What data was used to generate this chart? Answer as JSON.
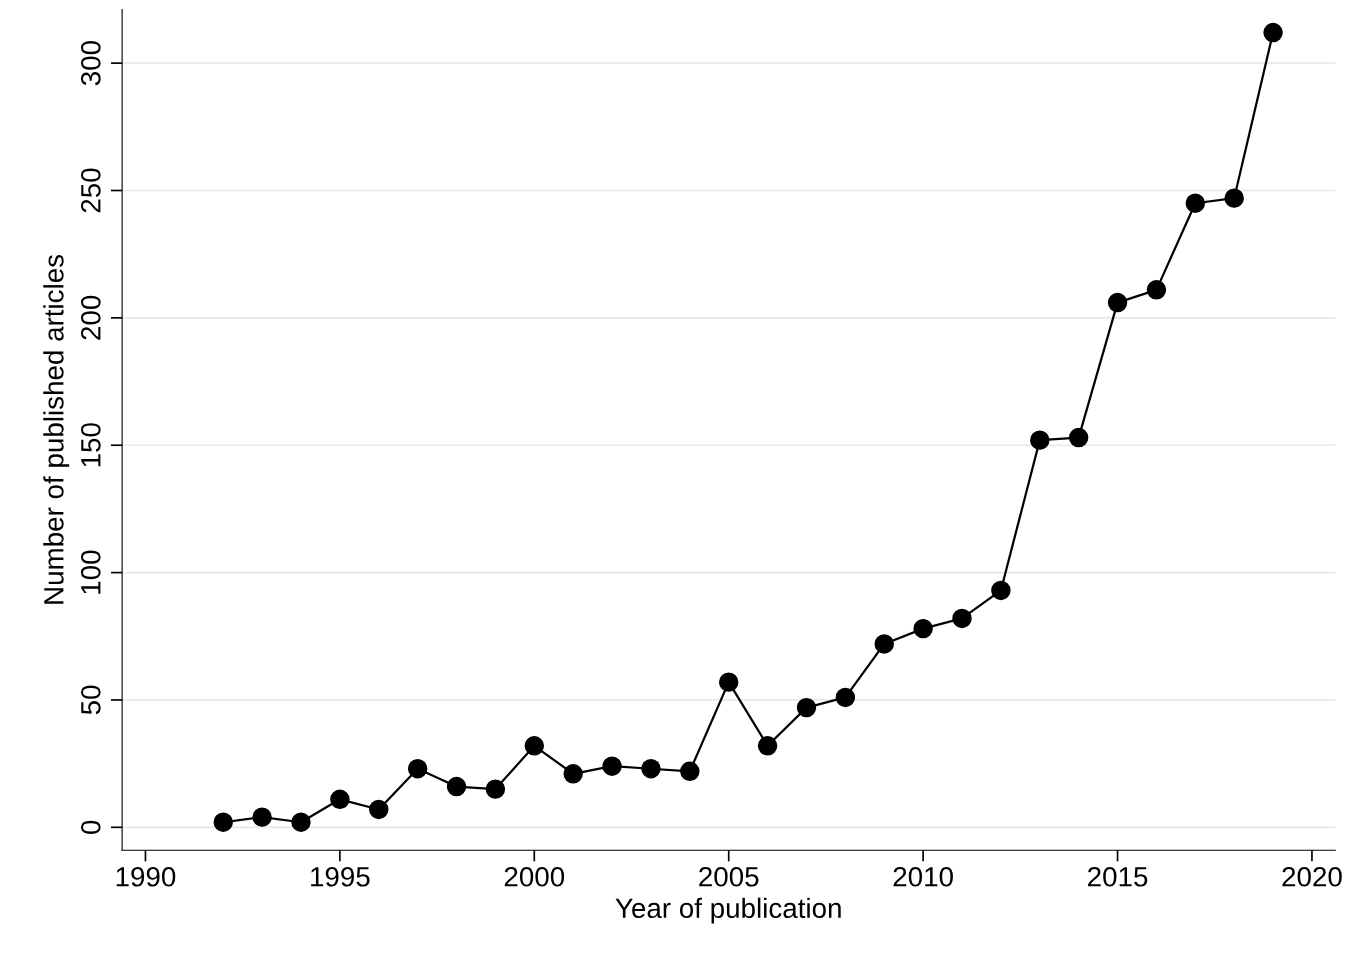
{
  "chart_data": {
    "type": "line",
    "xlabel": "Year of publication",
    "ylabel": "Number of published articles",
    "x": [
      1992,
      1993,
      1994,
      1995,
      1996,
      1997,
      1998,
      1999,
      2000,
      2001,
      2002,
      2003,
      2004,
      2005,
      2006,
      2007,
      2008,
      2009,
      2010,
      2011,
      2012,
      2013,
      2014,
      2015,
      2016,
      2017,
      2018,
      2019
    ],
    "series": [
      {
        "color": "#000000",
        "values": [
          2,
          4,
          2,
          11,
          7,
          23,
          16,
          15,
          32,
          21,
          24,
          23,
          22,
          57,
          32,
          47,
          51,
          72,
          78,
          82,
          93,
          152,
          153,
          206,
          211,
          245,
          247,
          312
        ]
      }
    ],
    "xlim": [
      1989.4,
      2020.6
    ],
    "xticks": [
      1990,
      1995,
      2000,
      2005,
      2010,
      2015,
      2020
    ],
    "ylim": [
      -9,
      321
    ],
    "yticks": [
      0,
      50,
      100,
      150,
      200,
      250,
      300
    ],
    "grid": "y",
    "marker": "circle",
    "line_style": "solid"
  }
}
